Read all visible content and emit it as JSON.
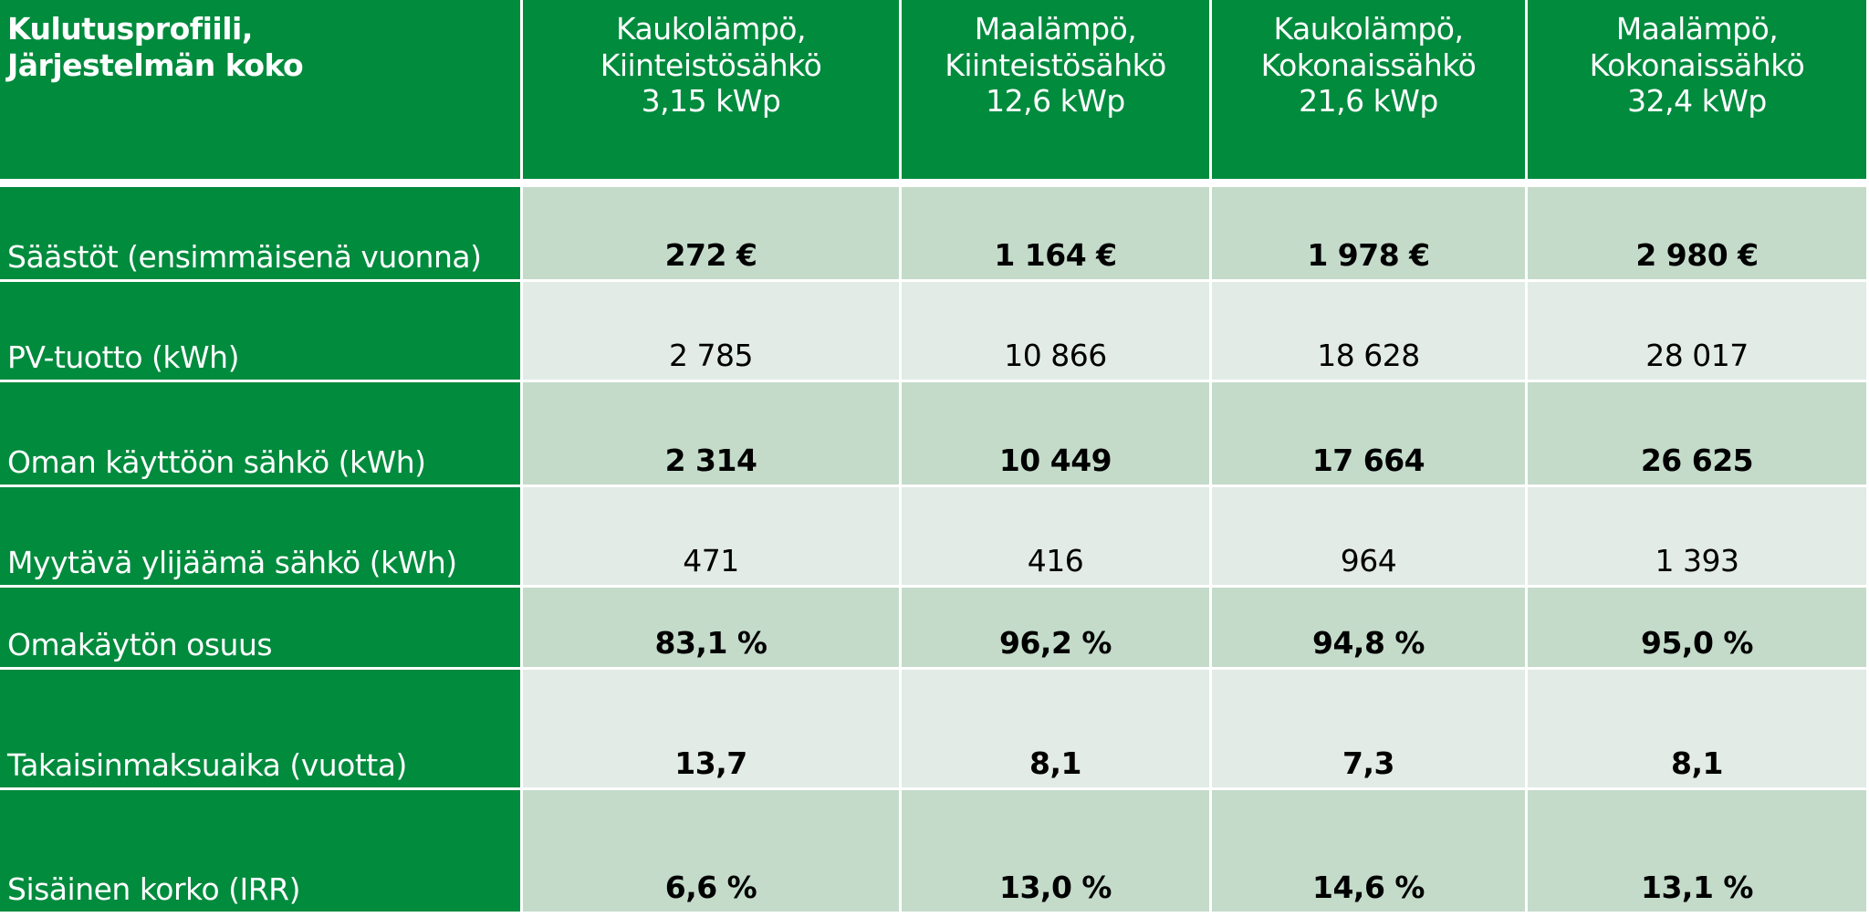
{
  "header": {
    "title": [
      "Kulutusprofiili,",
      "Järjestelmän koko"
    ],
    "columns": [
      [
        "Kaukolämpö,",
        "Kiinteistösähkö",
        "3,15 kWp"
      ],
      [
        "Maalämpö,",
        "Kiinteistösähkö",
        "12,6 kWp"
      ],
      [
        "Kaukolämpö,",
        "Kokonaissähkö",
        "21,6 kWp"
      ],
      [
        "Maalämpö,",
        "Kokonaissähkö",
        "32,4 kWp"
      ]
    ]
  },
  "table": {
    "rows": [
      {
        "label": "Säästöt (ensimmäisenä vuonna)",
        "bold": true,
        "cells": [
          "272 €",
          "1 164 €",
          "1 978 €",
          "2 980 €"
        ]
      },
      {
        "label": "PV-tuotto (kWh)",
        "bold": false,
        "cells": [
          "2 785",
          "10 866",
          "18 628",
          "28 017"
        ]
      },
      {
        "label": "Oman käyttöön sähkö (kWh)",
        "bold": true,
        "cells": [
          "2 314",
          "10 449",
          "17 664",
          "26 625"
        ]
      },
      {
        "label": "Myytävä ylijäämä sähkö (kWh)",
        "bold": false,
        "cells": [
          "471",
          "416",
          "964",
          "1 393"
        ]
      },
      {
        "label": "Omakäytön osuus",
        "bold": true,
        "cells": [
          "83,1 %",
          "96,2 %",
          "94,8 %",
          "95,0 %"
        ]
      },
      {
        "label": "Takaisinmaksuaika (vuotta)",
        "bold": true,
        "cells": [
          "13,7",
          "8,1",
          "7,3",
          "8,1"
        ]
      },
      {
        "label": "Sisäinen korko (IRR)",
        "bold": true,
        "cells": [
          "6,6 %",
          "13,0 %",
          "14,6 %",
          "13,1 %"
        ]
      }
    ]
  }
}
